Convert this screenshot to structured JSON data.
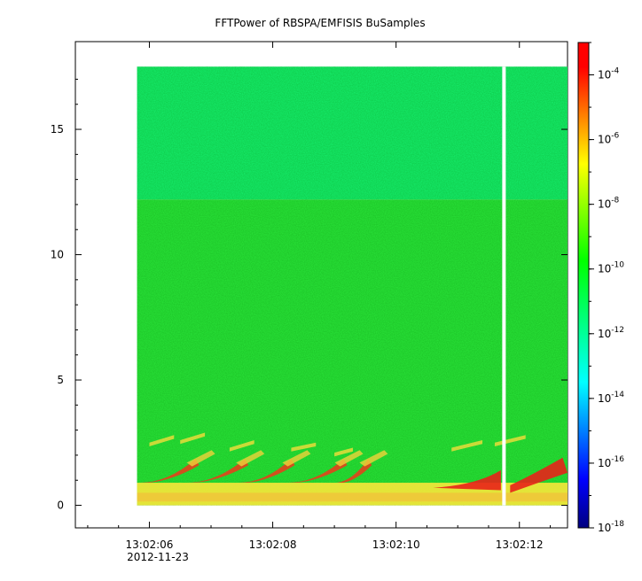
{
  "chart_data": {
    "type": "heatmap",
    "title": "FFTPower of RBSPA/EMFISIS  BuSamples",
    "xlabel": "",
    "ylabel": "",
    "x_date": "2012-11-23",
    "x_ticks": [
      {
        "value": 6,
        "label": "13:02:06"
      },
      {
        "value": 8,
        "label": "13:02:08"
      },
      {
        "value": 10,
        "label": "13:02:10"
      },
      {
        "value": 12,
        "label": "13:02:12"
      }
    ],
    "xlim": [
      4.8,
      12.78
    ],
    "ylim": [
      -0.9,
      18.5
    ],
    "y_ticks": [
      0,
      5,
      10,
      15
    ],
    "data_x_range": [
      5.8,
      12.78
    ],
    "data_y_range": [
      0,
      17.5
    ],
    "data_gap_x": 11.75,
    "colorbar": {
      "scale": "log",
      "range": [
        1e-18,
        0.001
      ],
      "tick_base": "10",
      "tick_exponents": [
        "-4",
        "-6",
        "-8",
        "-10",
        "-12",
        "-14",
        "-16",
        "-18"
      ],
      "colors": [
        "#00007f",
        "#0000ff",
        "#00ffff",
        "#00ff00",
        "#ffff00",
        "#ff0000",
        "#ff0000"
      ]
    },
    "features": {
      "background_upper_band": "1e-12",
      "background_lower_band": "1e-11",
      "band_boundary_y": 12.2,
      "low_frequency_band": "1e-8",
      "chorus_elements": "1e-6"
    }
  }
}
